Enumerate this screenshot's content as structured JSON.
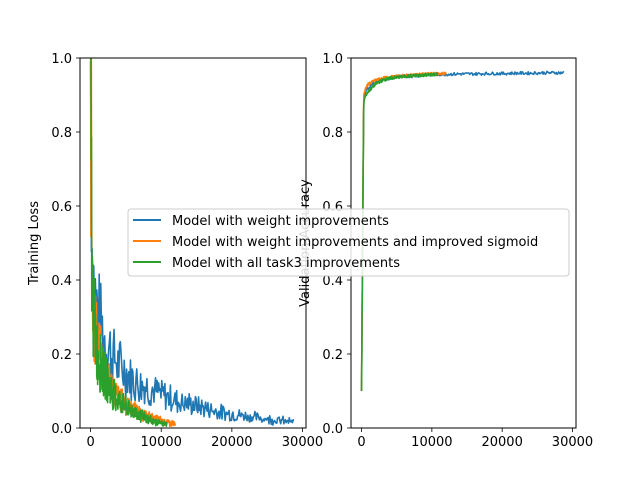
{
  "chart_data": [
    {
      "type": "line",
      "title": "",
      "xlabel": "",
      "ylabel": "Training Loss",
      "xlim": [
        -1500,
        30500
      ],
      "ylim": [
        0,
        1.0
      ],
      "xticks": [
        0,
        10000,
        20000,
        30000
      ],
      "xtick_labels": [
        "0",
        "10000",
        "20000",
        "30000"
      ],
      "yticks": [
        0,
        0.2,
        0.4,
        0.6,
        0.8,
        1.0
      ],
      "ytick_labels": [
        "0.0",
        "0.2",
        "0.4",
        "0.6",
        "0.8",
        "1.0"
      ],
      "grid": false,
      "series": [
        {
          "name": "Model with weight improvements",
          "color": "#1f77b4",
          "x": [
            0,
            200,
            500,
            1000,
            2000,
            3000,
            4000,
            5000,
            6000,
            7000,
            8000,
            9000,
            10000,
            11000,
            12000,
            13000,
            14000,
            15000,
            16000,
            17000,
            18000,
            19000,
            20000,
            21000,
            22000,
            23000,
            24000,
            25000,
            26000,
            27000,
            28000,
            28800
          ],
          "values": [
            1.0,
            0.52,
            0.38,
            0.31,
            0.24,
            0.2,
            0.17,
            0.15,
            0.13,
            0.12,
            0.11,
            0.1,
            0.09,
            0.085,
            0.075,
            0.07,
            0.065,
            0.06,
            0.055,
            0.05,
            0.045,
            0.04,
            0.038,
            0.035,
            0.032,
            0.03,
            0.027,
            0.025,
            0.022,
            0.02,
            0.018,
            0.015
          ]
        },
        {
          "name": "Model with weight improvements and improved sigmoid",
          "color": "#ff7f0e",
          "x": [
            0,
            200,
            500,
            1000,
            2000,
            3000,
            4000,
            5000,
            6000,
            7000,
            8000,
            9000,
            10000,
            11000,
            12000
          ],
          "values": [
            1.0,
            0.45,
            0.3,
            0.22,
            0.15,
            0.11,
            0.08,
            0.065,
            0.05,
            0.04,
            0.03,
            0.025,
            0.02,
            0.015,
            0.01
          ]
        },
        {
          "name": "Model with all task3 improvements",
          "color": "#2ca02c",
          "x": [
            0,
            200,
            500,
            1000,
            2000,
            3000,
            4000,
            5000,
            6000,
            7000,
            8000,
            9000,
            10000,
            10800
          ],
          "values": [
            1.0,
            0.4,
            0.28,
            0.2,
            0.14,
            0.1,
            0.075,
            0.058,
            0.045,
            0.035,
            0.025,
            0.018,
            0.012,
            0.01
          ]
        }
      ]
    },
    {
      "type": "line",
      "title": "",
      "xlabel": "",
      "ylabel": "Validation Accuracy",
      "xlim": [
        -1500,
        30500
      ],
      "ylim": [
        0,
        1.0
      ],
      "xticks": [
        0,
        10000,
        20000,
        30000
      ],
      "xtick_labels": [
        "0",
        "10000",
        "20000",
        "30000"
      ],
      "yticks": [
        0,
        0.2,
        0.4,
        0.6,
        0.8,
        1.0
      ],
      "ytick_labels": [
        "0.0",
        "0.2",
        "0.4",
        "0.6",
        "0.8",
        "1.0"
      ],
      "grid": false,
      "series": [
        {
          "name": "Model with weight improvements",
          "color": "#1f77b4",
          "x": [
            0,
            300,
            600,
            1000,
            1500,
            2000,
            3000,
            4000,
            5000,
            6000,
            8000,
            10000,
            12000,
            14000,
            16000,
            18000,
            20000,
            22000,
            24000,
            26000,
            28000,
            28800
          ],
          "values": [
            0.1,
            0.89,
            0.91,
            0.92,
            0.93,
            0.935,
            0.94,
            0.945,
            0.948,
            0.95,
            0.952,
            0.955,
            0.956,
            0.957,
            0.957,
            0.958,
            0.958,
            0.959,
            0.959,
            0.96,
            0.96,
            0.96
          ]
        },
        {
          "name": "Model with weight improvements and improved sigmoid",
          "color": "#ff7f0e",
          "x": [
            0,
            300,
            600,
            1000,
            1500,
            2000,
            3000,
            4000,
            5000,
            6000,
            8000,
            10000,
            12000
          ],
          "values": [
            0.1,
            0.9,
            0.92,
            0.93,
            0.935,
            0.94,
            0.945,
            0.948,
            0.95,
            0.952,
            0.955,
            0.957,
            0.958
          ]
        },
        {
          "name": "Model with all task3 improvements",
          "color": "#2ca02c",
          "x": [
            0,
            300,
            600,
            1000,
            1500,
            2000,
            3000,
            4000,
            5000,
            6000,
            8000,
            10000,
            10800
          ],
          "values": [
            0.1,
            0.88,
            0.9,
            0.91,
            0.92,
            0.93,
            0.94,
            0.945,
            0.948,
            0.95,
            0.953,
            0.955,
            0.956
          ]
        }
      ]
    }
  ],
  "legend": {
    "placement": "center",
    "entries": [
      {
        "label": "Model with weight improvements",
        "color": "#1f77b4"
      },
      {
        "label": "Model with weight improvements and improved sigmoid",
        "color": "#ff7f0e"
      },
      {
        "label": "Model with all task3 improvements",
        "color": "#2ca02c"
      }
    ]
  }
}
